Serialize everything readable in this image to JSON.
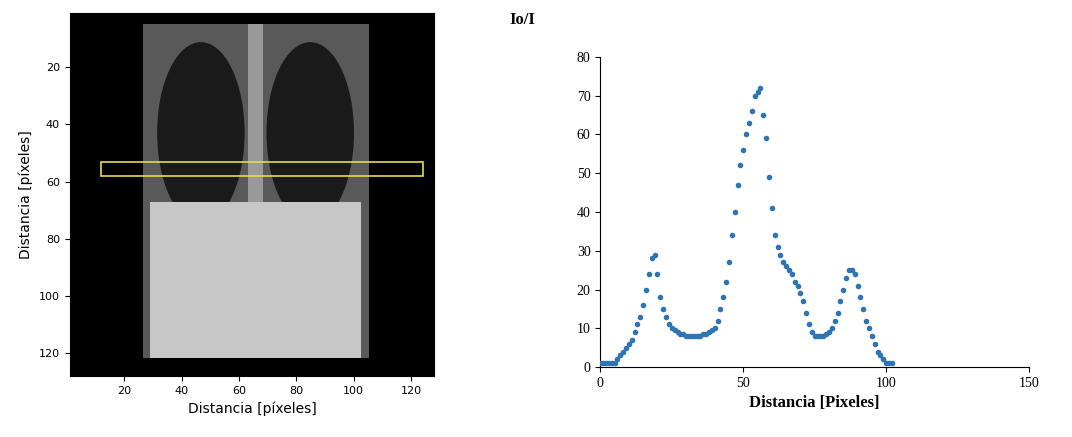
{
  "chart_data": [
    {
      "type": "image",
      "x_label": "Distancia [píxeles]",
      "y_label": "Distancia [píxeles]",
      "xlim": [
        1,
        128
      ],
      "ylim": [
        128,
        1
      ],
      "xticks": [
        20,
        40,
        60,
        80,
        100,
        120
      ],
      "yticks": [
        20,
        40,
        60,
        80,
        100,
        120
      ],
      "roi": {
        "x": [
          12,
          124
        ],
        "y": [
          53,
          58
        ]
      },
      "color": "#e6dc4a"
    },
    {
      "type": "scatter",
      "y_label": "Io/I",
      "x_label": "Distancia [Pixeles]",
      "x": [
        0,
        1,
        2,
        3,
        4,
        5,
        6,
        7,
        8,
        9,
        10,
        11,
        12,
        13,
        14,
        15,
        16,
        17,
        18,
        19,
        20,
        21,
        22,
        23,
        24,
        25,
        26,
        27,
        28,
        29,
        30,
        31,
        32,
        33,
        34,
        35,
        36,
        37,
        38,
        39,
        40,
        41,
        42,
        43,
        44,
        45,
        46,
        47,
        48,
        49,
        50,
        51,
        52,
        53,
        54,
        55,
        56,
        57,
        58,
        59,
        60,
        61,
        62,
        63,
        64,
        65,
        66,
        67,
        68,
        69,
        70,
        71,
        72,
        73,
        74,
        75,
        76,
        77,
        78,
        79,
        80,
        81,
        82,
        83,
        84,
        85,
        86,
        87,
        88,
        89,
        90,
        91,
        92,
        93,
        94,
        95,
        96,
        97,
        98,
        99,
        100,
        101,
        102
      ],
      "values": [
        1,
        1,
        1,
        1,
        1,
        1,
        2,
        3,
        4,
        5,
        6,
        7,
        9,
        11,
        13,
        16,
        20,
        24,
        28,
        29,
        24,
        18,
        15,
        13,
        11,
        10,
        9.5,
        9,
        8.5,
        8.5,
        8,
        8,
        8,
        8,
        8,
        8,
        8.5,
        8.5,
        9,
        9.5,
        10,
        12,
        15,
        18,
        22,
        27,
        34,
        40,
        47,
        52,
        56,
        60,
        63,
        66,
        70,
        71,
        72,
        65,
        59,
        49,
        41,
        34,
        31,
        29,
        27,
        26,
        25,
        24,
        22,
        21,
        19,
        17,
        14,
        11,
        9,
        8,
        8,
        8,
        8,
        8.5,
        9,
        10,
        12,
        14,
        17,
        20,
        23,
        25,
        25,
        24,
        21,
        18,
        15,
        12,
        10,
        8,
        6,
        4,
        3,
        2,
        1,
        1,
        1
      ],
      "color": "#2e75b6",
      "marker": "o",
      "xlim": [
        0,
        150
      ],
      "xticks": [
        0,
        50,
        100,
        150
      ],
      "ylim": [
        0,
        80
      ],
      "yticks": [
        0,
        10,
        20,
        30,
        40,
        50,
        60,
        70,
        80
      ]
    }
  ]
}
